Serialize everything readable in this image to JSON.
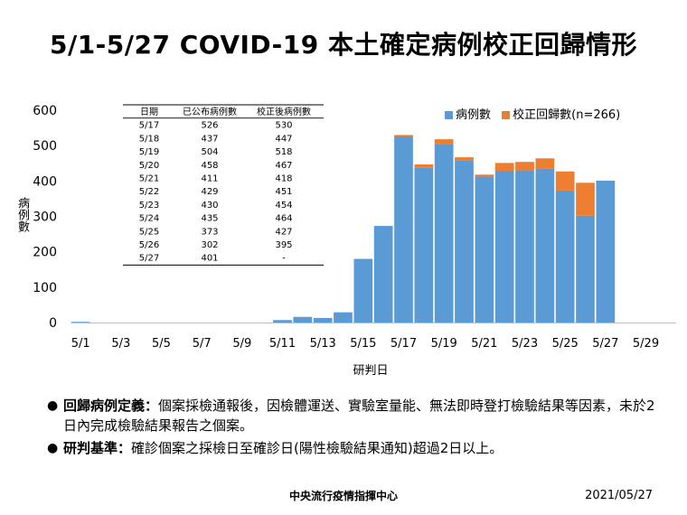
{
  "title": "5/1-5/27 COVID-19 本土確定病例校正回歸情形",
  "colors": {
    "cases": "#5b9bd5",
    "corrected": "#ed7d31",
    "axis": "#bfbfbf"
  },
  "chart_data": {
    "type": "bar",
    "stacked": true,
    "categories": [
      "5/1",
      "5/2",
      "5/3",
      "5/4",
      "5/5",
      "5/6",
      "5/7",
      "5/8",
      "5/9",
      "5/10",
      "5/11",
      "5/12",
      "5/13",
      "5/14",
      "5/15",
      "5/16",
      "5/17",
      "5/18",
      "5/19",
      "5/20",
      "5/21",
      "5/22",
      "5/23",
      "5/24",
      "5/25",
      "5/26",
      "5/27",
      "5/28",
      "5/29",
      "5/30"
    ],
    "xtick_labels": [
      "5/1",
      "5/3",
      "5/5",
      "5/7",
      "5/9",
      "5/11",
      "5/13",
      "5/15",
      "5/17",
      "5/19",
      "5/21",
      "5/23",
      "5/25",
      "5/27",
      "5/29"
    ],
    "series": [
      {
        "name": "病例數",
        "color": "#5b9bd5",
        "values": [
          2,
          0,
          0,
          0,
          0,
          0,
          0,
          0,
          0,
          0,
          7,
          16,
          13,
          29,
          180,
          273,
          526,
          437,
          504,
          458,
          411,
          429,
          430,
          435,
          373,
          302,
          401,
          0,
          0,
          0
        ]
      },
      {
        "name": "校正回歸數(n=266)",
        "color": "#ed7d31",
        "values": [
          0,
          0,
          0,
          0,
          0,
          0,
          0,
          0,
          0,
          0,
          0,
          0,
          0,
          0,
          0,
          0,
          4,
          10,
          14,
          9,
          7,
          22,
          24,
          29,
          54,
          93,
          0,
          0,
          0,
          0
        ]
      }
    ],
    "xlabel": "研判日",
    "ylabel": "病例數",
    "ylim": [
      0,
      600
    ],
    "yticks": [
      0,
      100,
      200,
      300,
      400,
      500,
      600
    ],
    "grid": false,
    "legend_position": "top-right"
  },
  "table": {
    "headers": [
      "日期",
      "已公布病例數",
      "校正後病例數"
    ],
    "rows": [
      [
        "5/17",
        "526",
        "530"
      ],
      [
        "5/18",
        "437",
        "447"
      ],
      [
        "5/19",
        "504",
        "518"
      ],
      [
        "5/20",
        "458",
        "467"
      ],
      [
        "5/21",
        "411",
        "418"
      ],
      [
        "5/22",
        "429",
        "451"
      ],
      [
        "5/23",
        "430",
        "454"
      ],
      [
        "5/24",
        "435",
        "464"
      ],
      [
        "5/25",
        "373",
        "427"
      ],
      [
        "5/26",
        "302",
        "395"
      ],
      [
        "5/27",
        "401",
        "-"
      ]
    ]
  },
  "notes": [
    {
      "term": "回歸病例定義：",
      "text": "個案採檢通報後，因檢體運送、實驗室量能、無法即時登打檢驗結果等因素，未於2日內完成檢驗結果報告之個案。"
    },
    {
      "term": "研判基準：",
      "text": "確診個案之採檢日至確診日(陽性檢驗結果通知)超過2日以上。"
    }
  ],
  "footer": {
    "org": "中央流行疫情指揮中心",
    "date": "2021/05/27"
  }
}
